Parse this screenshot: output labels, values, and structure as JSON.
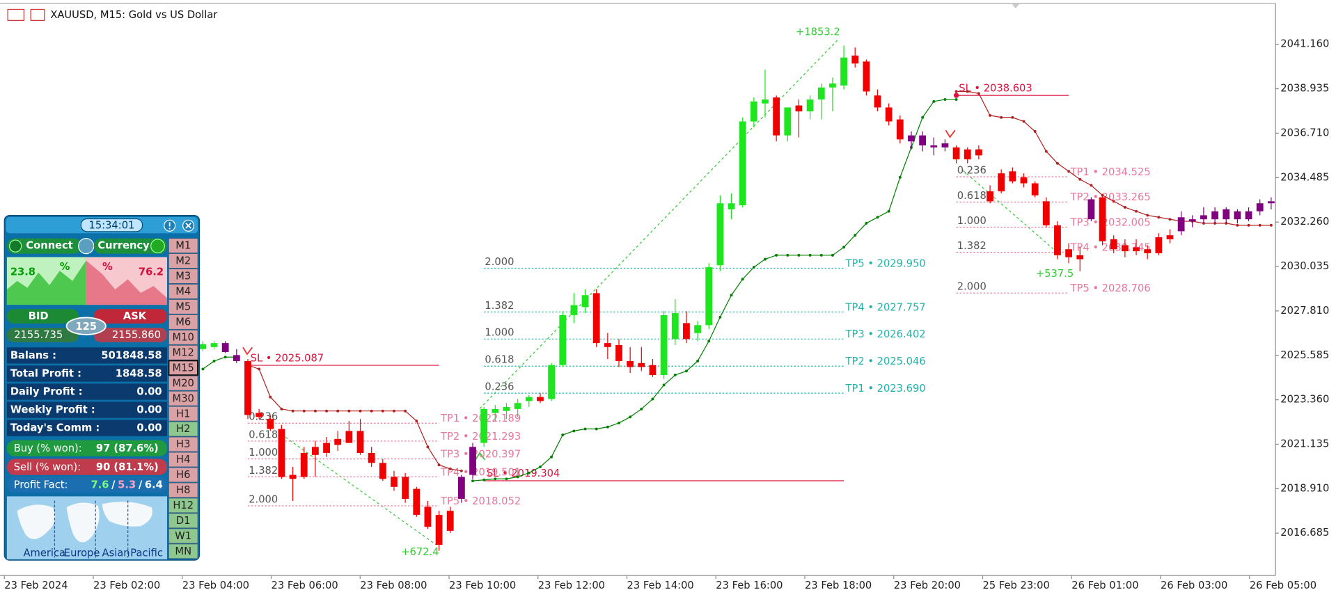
{
  "chart_data": {
    "type": "candlestick",
    "title": "XAUUSD, M15:  Gold vs US Dollar",
    "ylim": [
      2014.56,
      2043.21
    ],
    "yticks": [
      {
        "value": 2041.16,
        "label": "2041.160"
      },
      {
        "value": 2038.935,
        "label": "2038.935"
      },
      {
        "value": 2036.71,
        "label": "2036.710"
      },
      {
        "value": 2034.485,
        "label": "2034.485"
      },
      {
        "value": 2032.26,
        "label": "2032.260"
      },
      {
        "value": 2030.035,
        "label": "2030.035"
      },
      {
        "value": 2027.81,
        "label": "2027.810"
      },
      {
        "value": 2025.585,
        "label": "2025.585"
      },
      {
        "value": 2023.36,
        "label": "2023.360"
      },
      {
        "value": 2021.135,
        "label": "2021.135"
      },
      {
        "value": 2018.91,
        "label": "2018.910"
      },
      {
        "value": 2016.685,
        "label": "2016.685"
      }
    ],
    "time_labels": [
      "23 Feb 2024",
      "23 Feb 02:00",
      "23 Feb 04:00",
      "23 Feb 06:00",
      "23 Feb 08:00",
      "23 Feb 10:00",
      "23 Feb 12:00",
      "23 Feb 14:00",
      "23 Feb 16:00",
      "23 Feb 18:00",
      "23 Feb 20:00",
      "25 Feb 23:00",
      "26 Feb 01:00",
      "26 Feb 03:00",
      "26 Feb 05:00"
    ],
    "palette": {
      "g": "#1ee61e",
      "r": "#f00000",
      "p": "#800080"
    },
    "candle_colors": "ggpprrrrrrrrrrrrrrrrrrrppgggggrggggrrrrrrggrgggggggrgrggggrrrrrpppprrrrrrrrrrrrprrrrrrrppppppppp",
    "candles": [
      [
        2025.9,
        2026.3,
        2025.8,
        2026.15
      ],
      [
        2026.0,
        2026.3,
        2025.9,
        2026.2
      ],
      [
        2026.2,
        2026.3,
        2025.7,
        2025.75
      ],
      [
        2025.6,
        2025.9,
        2025.2,
        2025.3
      ],
      [
        2025.3,
        2025.4,
        2022.4,
        2022.6
      ],
      [
        2022.7,
        2022.9,
        2022.4,
        2022.5
      ],
      [
        2022.4,
        2022.6,
        2021.8,
        2021.9
      ],
      [
        2021.9,
        2022.1,
        2019.4,
        2019.5
      ],
      [
        2019.6,
        2020.0,
        2018.3,
        2019.4
      ],
      [
        2020.7,
        2021.0,
        2019.4,
        2019.5
      ],
      [
        2021.0,
        2021.3,
        2019.5,
        2020.6
      ],
      [
        2021.2,
        2021.5,
        2020.5,
        2020.7
      ],
      [
        2021.4,
        2021.8,
        2020.8,
        2021.1
      ],
      [
        2021.8,
        2022.3,
        2021.2,
        2021.2
      ],
      [
        2021.8,
        2022.4,
        2020.6,
        2020.7
      ],
      [
        2020.7,
        2021.0,
        2020.0,
        2020.2
      ],
      [
        2020.2,
        2020.4,
        2019.3,
        2019.4
      ],
      [
        2019.5,
        2019.8,
        2018.8,
        2019.0
      ],
      [
        2019.5,
        2019.7,
        2018.2,
        2018.4
      ],
      [
        2018.9,
        2019.0,
        2017.5,
        2017.6
      ],
      [
        2018.0,
        2018.3,
        2016.9,
        2017.0
      ],
      [
        2017.6,
        2017.8,
        2015.8,
        2016.1
      ],
      [
        2017.8,
        2018.0,
        2016.7,
        2016.8
      ],
      [
        2018.4,
        2019.6,
        2018.2,
        2019.5
      ],
      [
        2019.6,
        2021.2,
        2019.4,
        2021.0
      ],
      [
        2021.2,
        2023.0,
        2021.0,
        2022.9
      ],
      [
        2022.7,
        2023.1,
        2022.3,
        2022.9
      ],
      [
        2022.8,
        2023.2,
        2022.4,
        2023.0
      ],
      [
        2022.9,
        2023.4,
        2022.5,
        2023.2
      ],
      [
        2023.3,
        2023.6,
        2023.0,
        2023.5
      ],
      [
        2023.5,
        2023.7,
        2023.2,
        2023.3
      ],
      [
        2023.4,
        2025.2,
        2023.3,
        2025.1
      ],
      [
        2025.1,
        2027.8,
        2025.0,
        2027.6
      ],
      [
        2027.6,
        2028.7,
        2027.2,
        2028.1
      ],
      [
        2028.0,
        2028.9,
        2027.7,
        2028.6
      ],
      [
        2028.7,
        2028.9,
        2026.0,
        2026.2
      ],
      [
        2026.2,
        2026.7,
        2025.4,
        2026.0
      ],
      [
        2026.1,
        2026.4,
        2025.0,
        2025.3
      ],
      [
        2025.3,
        2026.0,
        2024.7,
        2025.0
      ],
      [
        2025.2,
        2026.0,
        2024.8,
        2025.0
      ],
      [
        2025.1,
        2025.4,
        2024.5,
        2024.6
      ],
      [
        2024.6,
        2027.8,
        2024.4,
        2027.6
      ],
      [
        2026.4,
        2028.4,
        2026.1,
        2027.7
      ],
      [
        2027.2,
        2027.8,
        2026.2,
        2026.4
      ],
      [
        2026.7,
        2027.3,
        2026.3,
        2027.1
      ],
      [
        2027.1,
        2030.2,
        2026.9,
        2030.0
      ],
      [
        2030.1,
        2033.6,
        2029.8,
        2033.2
      ],
      [
        2032.9,
        2033.7,
        2032.4,
        2033.2
      ],
      [
        2033.1,
        2037.5,
        2033.0,
        2037.3
      ],
      [
        2037.3,
        2038.5,
        2037.0,
        2038.3
      ],
      [
        2038.2,
        2039.9,
        2037.5,
        2038.4
      ],
      [
        2038.5,
        2038.6,
        2036.3,
        2036.6
      ],
      [
        2036.6,
        2038.0,
        2036.3,
        2038.0
      ],
      [
        2038.1,
        2038.4,
        2036.5,
        2037.8
      ],
      [
        2037.8,
        2038.6,
        2037.4,
        2038.4
      ],
      [
        2038.4,
        2039.2,
        2037.4,
        2039.0
      ],
      [
        2039.0,
        2039.5,
        2037.8,
        2039.2
      ],
      [
        2039.1,
        2041.1,
        2038.9,
        2040.5
      ],
      [
        2040.6,
        2041.0,
        2040.0,
        2040.2
      ],
      [
        2040.3,
        2040.4,
        2038.6,
        2038.8
      ],
      [
        2038.6,
        2038.9,
        2037.8,
        2038.0
      ],
      [
        2038.0,
        2038.2,
        2037.1,
        2037.3
      ],
      [
        2037.4,
        2037.6,
        2036.2,
        2036.4
      ],
      [
        2036.3,
        2036.8,
        2035.9,
        2036.6
      ],
      [
        2036.6,
        2036.8,
        2035.8,
        2036.1
      ],
      [
        2036.1,
        2036.5,
        2035.6,
        2036.0
      ],
      [
        2036.0,
        2036.4,
        2035.8,
        2036.2
      ],
      [
        2036.0,
        2036.1,
        2035.2,
        2035.4
      ],
      [
        2035.9,
        2036.0,
        2035.2,
        2035.4
      ],
      [
        2035.9,
        2036.1,
        2035.4,
        2035.6
      ],
      [
        2033.8,
        2034.1,
        2033.2,
        2033.3
      ],
      [
        2034.7,
        2034.9,
        2033.7,
        2033.8
      ],
      [
        2034.8,
        2035.0,
        2034.2,
        2034.3
      ],
      [
        2034.5,
        2034.7,
        2034.0,
        2034.2
      ],
      [
        2034.2,
        2034.3,
        2033.5,
        2033.6
      ],
      [
        2033.3,
        2033.5,
        2032.0,
        2032.1
      ],
      [
        2032.1,
        2032.3,
        2030.4,
        2030.6
      ],
      [
        2030.9,
        2031.2,
        2030.2,
        2030.5
      ],
      [
        2030.6,
        2031.0,
        2029.8,
        2030.4
      ],
      [
        2032.4,
        2033.5,
        2032.3,
        2033.4
      ],
      [
        2033.5,
        2033.6,
        2031.1,
        2031.3
      ],
      [
        2031.4,
        2031.6,
        2030.7,
        2030.9
      ],
      [
        2031.1,
        2031.4,
        2030.5,
        2030.8
      ],
      [
        2031.0,
        2031.4,
        2030.6,
        2030.8
      ],
      [
        2030.9,
        2031.1,
        2030.4,
        2030.7
      ],
      [
        2031.5,
        2031.7,
        2030.6,
        2030.7
      ],
      [
        2031.6,
        2031.9,
        2031.2,
        2031.4
      ],
      [
        2031.8,
        2032.8,
        2031.6,
        2032.5
      ],
      [
        2032.3,
        2032.6,
        2032.0,
        2032.4
      ],
      [
        2032.4,
        2033.0,
        2032.2,
        2032.6
      ],
      [
        2032.4,
        2033.0,
        2032.2,
        2032.8
      ],
      [
        2032.4,
        2033.0,
        2032.2,
        2032.9
      ],
      [
        2032.4,
        2032.9,
        2032.2,
        2032.8
      ],
      [
        2032.8,
        2033.0,
        2032.3,
        2032.4
      ],
      [
        2032.8,
        2033.4,
        2032.6,
        2033.2
      ],
      [
        2033.2,
        2033.5,
        2032.9,
        2033.3
      ]
    ],
    "lines": [
      {
        "color": "#008000",
        "values": [
          2024.9,
          2025.3,
          2025.5,
          2025.5,
          null,
          null,
          null,
          null,
          null,
          null,
          null,
          null,
          null,
          null,
          null,
          null,
          null,
          null,
          null,
          null,
          null,
          null,
          null,
          null,
          2019.3,
          2019.35,
          2019.4,
          2019.4,
          2019.5,
          2019.7,
          2020.0,
          2020.5,
          2021.6,
          2021.8,
          2021.9,
          2021.9,
          2022.0,
          2022.2,
          2022.5,
          2022.9,
          2023.4,
          2024.1,
          2024.6,
          2024.8,
          2025.3,
          2026.3,
          2027.5,
          2028.6,
          2029.4,
          2030.0,
          2030.4,
          2030.6,
          2030.6,
          2030.6,
          2030.6,
          2030.6,
          2030.6,
          2031.0,
          2031.6,
          2032.2,
          2032.5,
          2032.8,
          2034.5,
          2036.0,
          2037.5,
          2038.3,
          2038.4,
          2038.4,
          null,
          null,
          null,
          null,
          null,
          null,
          null,
          null,
          null,
          null,
          null,
          null,
          null,
          null,
          null,
          null,
          null,
          null,
          null,
          null,
          null,
          null,
          null,
          null,
          null,
          null,
          null,
          null
        ]
      },
      {
        "color": "#b22222",
        "values": [
          null,
          null,
          null,
          null,
          2025.1,
          2024.9,
          2023.5,
          2022.9,
          2022.8,
          2022.8,
          2022.8,
          2022.8,
          2022.8,
          2022.8,
          2022.8,
          2022.8,
          2022.8,
          2022.8,
          2022.8,
          2022.3,
          2021.0,
          2020.1,
          2019.9,
          2019.8,
          null,
          null,
          null,
          null,
          null,
          null,
          null,
          null,
          null,
          null,
          null,
          null,
          null,
          null,
          null,
          null,
          null,
          null,
          null,
          null,
          null,
          null,
          null,
          null,
          null,
          null,
          null,
          null,
          null,
          null,
          null,
          null,
          null,
          null,
          null,
          null,
          null,
          null,
          null,
          null,
          null,
          null,
          null,
          2038.8,
          2038.8,
          2038.7,
          2037.6,
          2037.5,
          2037.5,
          2037.3,
          2036.8,
          2035.8,
          2035.2,
          2034.8,
          2034.4,
          2034.1,
          2033.6,
          2033.3,
          2033.0,
          2032.8,
          2032.6,
          2032.5,
          2032.4,
          2032.3,
          2032.3,
          2032.2,
          2032.2,
          2032.2,
          2032.1,
          2032.1,
          2032.1,
          2032.1
        ]
      }
    ],
    "level_groups": [
      {
        "color": "#20b2aa",
        "start": 25,
        "end": 57,
        "levels": [
          {
            "fib": "2.000",
            "label": "TP5 • 2029.950",
            "value": 2029.95
          },
          {
            "fib": "1.382",
            "label": "TP4 • 2027.757",
            "value": 2027.757
          },
          {
            "fib": "1.000",
            "label": "TP3 • 2026.402",
            "value": 2026.402
          },
          {
            "fib": "0.618",
            "label": "TP2 • 2025.046",
            "value": 2025.046
          },
          {
            "fib": "0.236",
            "label": "TP1 • 2023.690",
            "value": 2023.69
          }
        ],
        "sl": {
          "label": "SL • 2019.304",
          "value": 2019.304,
          "color": "#dc143c"
        }
      },
      {
        "color": "#e8779a",
        "start": 4,
        "end": 21,
        "levels": [
          {
            "fib": "0.236",
            "label": "TP1 • 2022.189",
            "value": 2022.189
          },
          {
            "fib": "0.618",
            "label": "TP2 • 2021.293",
            "value": 2021.293
          },
          {
            "fib": "1.000",
            "label": "TP3 • 2020.397",
            "value": 2020.397
          },
          {
            "fib": "1.382",
            "label": "TP4 • 2019.501",
            "value": 2019.501
          },
          {
            "fib": "2.000",
            "label": "TP5 • 2018.052",
            "value": 2018.052
          }
        ],
        "sl": {
          "label": "SL • 2025.087",
          "value": 2025.087,
          "color": "#dc143c"
        }
      },
      {
        "color": "#e8779a",
        "start": 67,
        "end": 77,
        "levels": [
          {
            "fib": "0.236",
            "label": "TP1 • 2034.525",
            "value": 2034.525
          },
          {
            "fib": "0.618",
            "label": "TP2 • 2033.265",
            "value": 2033.265
          },
          {
            "fib": "1.000",
            "label": "TP3 • 2032.005",
            "value": 2032.005
          },
          {
            "fib": "1.382",
            "label": "TP4 • 2030.745",
            "value": 2030.745
          },
          {
            "fib": "2.000",
            "label": "TP5 • 2028.706",
            "value": 2028.706
          }
        ],
        "sl": {
          "label": "SL • 2038.603",
          "value": 2038.603,
          "color": "#dc143c"
        }
      }
    ],
    "annotations": [
      {
        "text": "+1853.2",
        "color": "#32cd32"
      },
      {
        "text": "+672.4",
        "color": "#32cd32"
      },
      {
        "text": "+537.5",
        "color": "#32cd32"
      }
    ]
  },
  "panel": {
    "clock": "15:34:01",
    "connect": "Connect",
    "currency": "Currency",
    "buy_pct": "23.8",
    "sell_pct": "76.2",
    "pct_sign": "%",
    "bid": "BID",
    "ask": "ASK",
    "spread": "125",
    "bid_price": "2155.735",
    "ask_price": "2155.860",
    "rows": [
      [
        "Balans :",
        "501848.58"
      ],
      [
        "Total Profit :",
        "1848.58"
      ],
      [
        "Daily Profit :",
        "0.00"
      ],
      [
        "Weekly Profit :",
        "0.00"
      ],
      [
        "Today's Comm :",
        "0.00"
      ]
    ],
    "buy": [
      "Buy (% won):",
      "97 (87.6%)"
    ],
    "sell": [
      "Sell (% won):",
      "90 (81.1%)"
    ],
    "profit_fact": {
      "label": "Profit Fact:",
      "values": [
        "7.6",
        "5.3",
        "6.4"
      ],
      "separator": "/",
      "colors": [
        "#7cfc7c",
        "#ffa0c0",
        "#ffffff"
      ]
    },
    "sessions": [
      "America",
      "Europe",
      "Asian",
      "Pacific"
    ],
    "active": "M15",
    "timeframes": [
      {
        "label": "M1",
        "color": "#dba2a6"
      },
      {
        "label": "M2",
        "color": "#dba2a6"
      },
      {
        "label": "M3",
        "color": "#dba2a6"
      },
      {
        "label": "M4",
        "color": "#dba2a6"
      },
      {
        "label": "M5",
        "color": "#dba2a6"
      },
      {
        "label": "M6",
        "color": "#dba2a6"
      },
      {
        "label": "M10",
        "color": "#dba2a6"
      },
      {
        "label": "M12",
        "color": "#dba2a6"
      },
      {
        "label": "M15",
        "color": "#dba2a6"
      },
      {
        "label": "M20",
        "color": "#dba2a6"
      },
      {
        "label": "M30",
        "color": "#dba2a6"
      },
      {
        "label": "H1",
        "color": "#dba2a6"
      },
      {
        "label": "H2",
        "color": "#8fc88f"
      },
      {
        "label": "H3",
        "color": "#dba2a6"
      },
      {
        "label": "H4",
        "color": "#dba2a6"
      },
      {
        "label": "H6",
        "color": "#dba2a6"
      },
      {
        "label": "H8",
        "color": "#dba2a6"
      },
      {
        "label": "H12",
        "color": "#8fc88f"
      },
      {
        "label": "D1",
        "color": "#8fc88f"
      },
      {
        "label": "W1",
        "color": "#8fc88f"
      },
      {
        "label": "MN",
        "color": "#8fc88f"
      }
    ]
  }
}
